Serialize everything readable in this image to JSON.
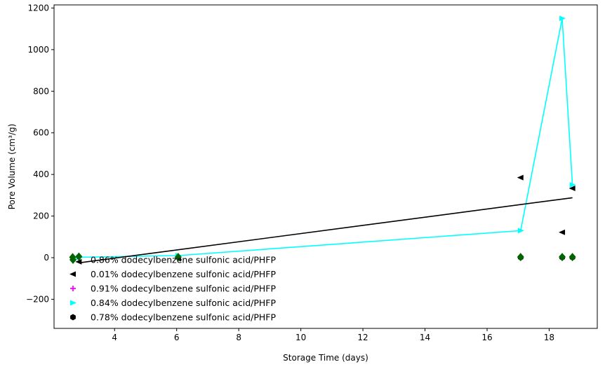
{
  "chart_data": {
    "type": "scatter",
    "xlabel": "Storage Time (days)",
    "ylabel": "Pore Volume (cm³/g)",
    "xlim": [
      2.05,
      19.55
    ],
    "ylim": [
      -340,
      1215
    ],
    "x_ticks": [
      4,
      6,
      8,
      10,
      12,
      14,
      16,
      18
    ],
    "y_ticks": [
      -200,
      0,
      200,
      400,
      600,
      800,
      1000,
      1200
    ],
    "grid": false,
    "legend_position": "lower-left",
    "series": [
      {
        "name": "0.86% dodecylbenzene sulfonic acid/PHFP",
        "marker": "diamond",
        "color": "#006400",
        "points": [
          [
            2.65,
            2
          ],
          [
            2.85,
            5
          ],
          [
            6.05,
            3
          ],
          [
            17.08,
            3
          ],
          [
            18.42,
            3
          ],
          [
            18.75,
            3
          ]
        ]
      },
      {
        "name": "0.01% dodecylbenzene sulfonic acid/PHFP",
        "marker": "triangle-left",
        "color": "#000000",
        "points": [
          [
            2.85,
            -20
          ],
          [
            6.05,
            -5
          ],
          [
            17.08,
            385
          ],
          [
            18.42,
            122
          ],
          [
            18.75,
            333
          ]
        ]
      },
      {
        "name": "0.91% dodecylbenzene sulfonic acid/PHFP",
        "marker": "plus",
        "color": "#ff00ff",
        "points": []
      },
      {
        "name": "0.84% dodecylbenzene sulfonic acid/PHFP",
        "marker": "triangle-right",
        "color": "#00ffff",
        "points": [
          [
            2.85,
            2
          ],
          [
            6.05,
            10
          ],
          [
            17.08,
            130
          ],
          [
            18.42,
            1150
          ],
          [
            18.75,
            350
          ]
        ]
      },
      {
        "name": "0.78% dodecylbenzene sulfonic acid/PHFP",
        "marker": "hexagon",
        "color": "#000000",
        "points": [
          [
            17.08,
            1
          ],
          [
            18.42,
            1
          ],
          [
            18.75,
            1
          ]
        ]
      }
    ],
    "lines": [
      {
        "name": "0.84% connecting line",
        "color": "#00ffff",
        "points": [
          [
            2.85,
            2
          ],
          [
            6.05,
            10
          ],
          [
            17.08,
            130
          ],
          [
            18.42,
            1150
          ],
          [
            18.75,
            350
          ]
        ]
      },
      {
        "name": "trend line",
        "color": "#000000",
        "points": [
          [
            2.85,
            -25
          ],
          [
            18.75,
            288
          ]
        ]
      }
    ]
  }
}
